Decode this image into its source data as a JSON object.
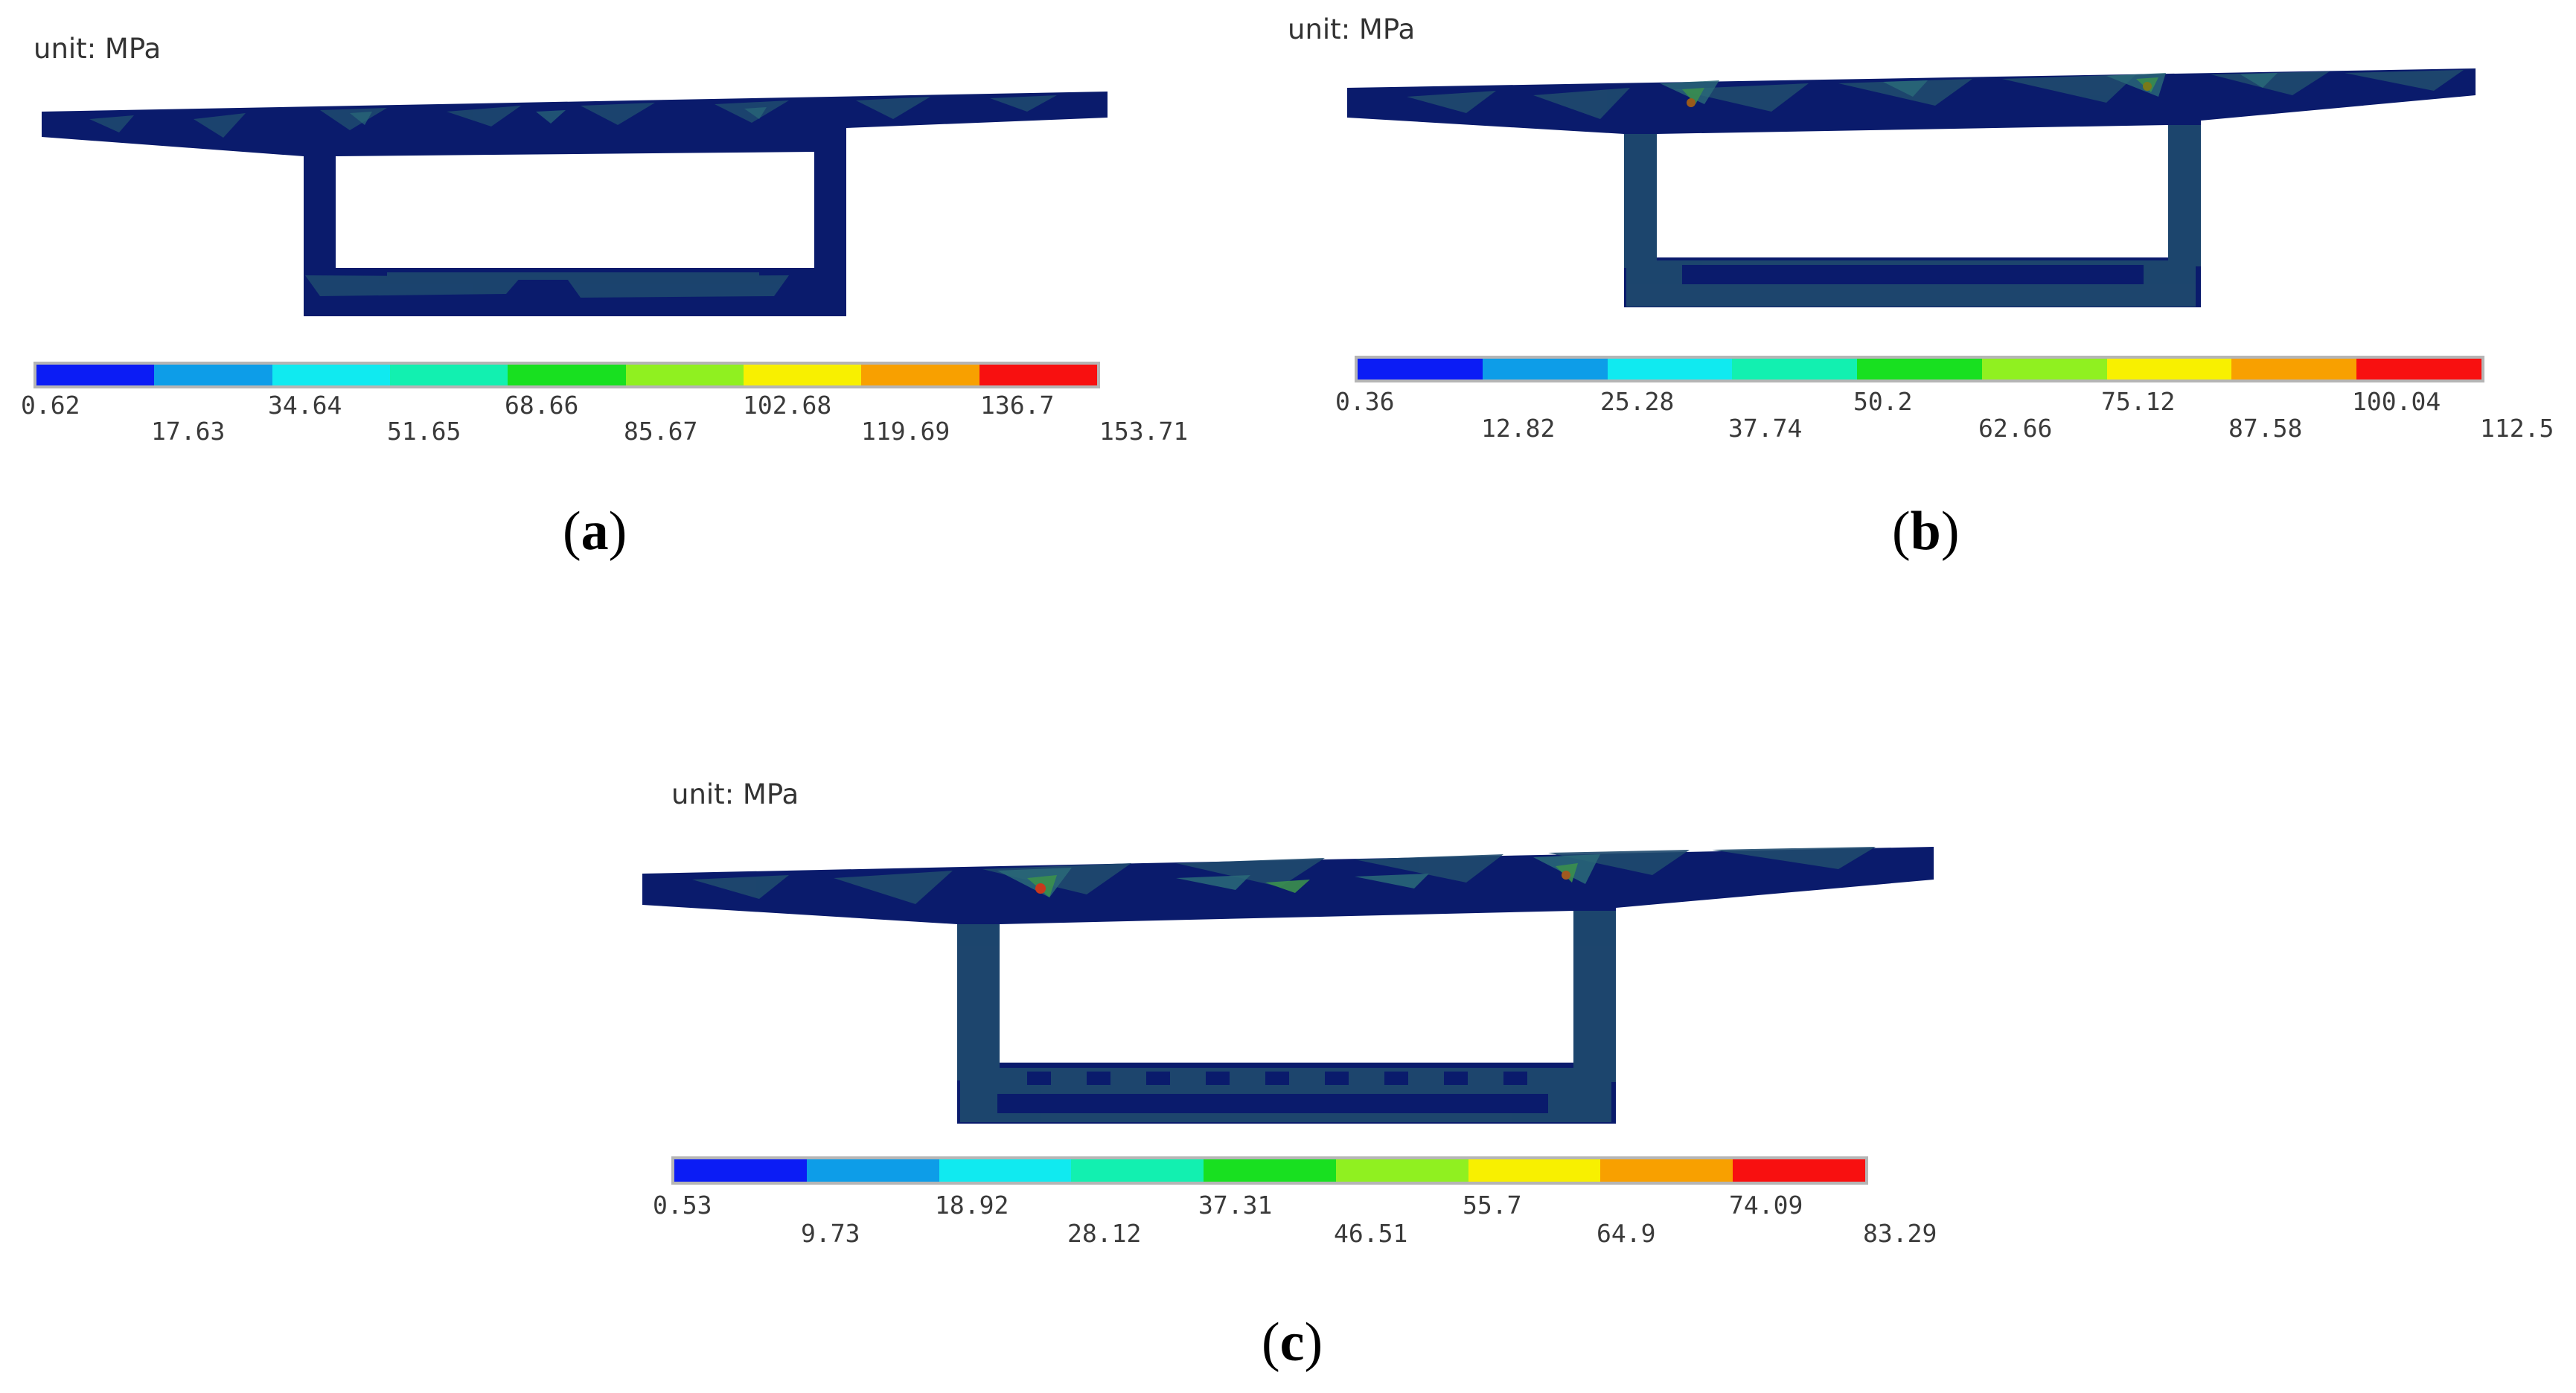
{
  "colors": {
    "background": "#ffffff",
    "section_base": "#0a1b6c",
    "section_mid": "#1f4a6e",
    "section_teal": "#2a6a78",
    "section_green": "#3b8f4e",
    "hotspot": "#c8381c",
    "bar_border": "#b5b5b5"
  },
  "legend_colors": [
    "#0b1cf5",
    "#0d9de8",
    "#10eaf0",
    "#12f0b0",
    "#18e020",
    "#90f020",
    "#f8f000",
    "#f8a000",
    "#f81010"
  ],
  "panels": [
    {
      "id": "a",
      "unit_label": "unit: MPa",
      "caption_letter": "a",
      "ticks_upper": [
        "0.62",
        "34.64",
        "68.66",
        "102.68",
        "136.7"
      ],
      "ticks_lower": [
        "17.63",
        "51.65",
        "85.67",
        "119.69",
        "153.71"
      ],
      "stress_level": "low"
    },
    {
      "id": "b",
      "unit_label": "unit: MPa",
      "caption_letter": "b",
      "ticks_upper": [
        "0.36",
        "25.28",
        "50.2",
        "75.12",
        "100.04"
      ],
      "ticks_lower": [
        "12.82",
        "37.74",
        "62.66",
        "87.58",
        "112.5"
      ],
      "stress_level": "medium"
    },
    {
      "id": "c",
      "unit_label": "unit: MPa",
      "caption_letter": "c",
      "ticks_upper": [
        "0.53",
        "18.92",
        "37.31",
        "55.7",
        "74.09"
      ],
      "ticks_lower": [
        "9.73",
        "28.12",
        "46.51",
        "64.9",
        "83.29"
      ],
      "stress_level": "medium"
    }
  ]
}
